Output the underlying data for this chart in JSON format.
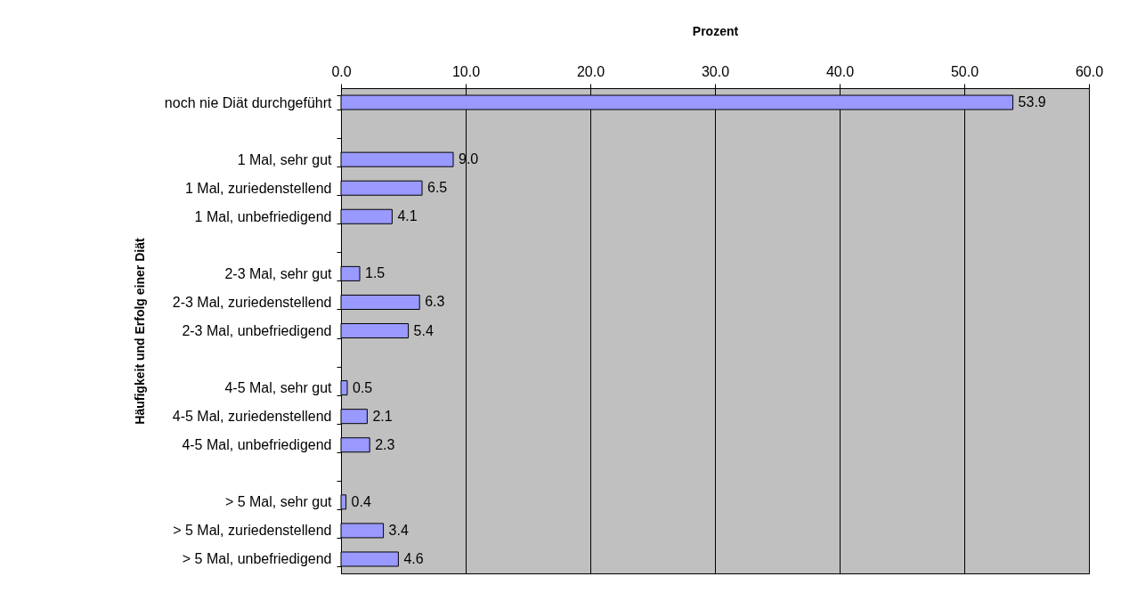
{
  "chart_data": {
    "type": "bar",
    "orientation": "horizontal",
    "xlabel": "Prozent",
    "ylabel": "Häufigkeit und Erfolg einer Diät",
    "categories": [
      "noch nie Diät durchgeführt",
      null,
      "1 Mal, sehr gut",
      "1 Mal, zuriedenstellend",
      "1 Mal, unbefriedigend",
      null,
      "2-3 Mal, sehr gut",
      "2-3 Mal, zuriedenstellend",
      "2-3 Mal, unbefriedigend",
      null,
      "4-5 Mal, sehr gut",
      "4-5 Mal, zuriedenstellend",
      "4-5 Mal, unbefriedigend",
      null,
      "> 5 Mal, sehr gut",
      "> 5 Mal, zuriedenstellend",
      "> 5 Mal, unbefriedigend"
    ],
    "values": [
      53.9,
      null,
      9.0,
      6.5,
      4.1,
      null,
      1.5,
      6.3,
      5.4,
      null,
      0.5,
      2.1,
      2.3,
      null,
      0.4,
      3.4,
      4.6
    ],
    "value_labels": [
      "53.9",
      null,
      "9.0",
      "6.5",
      "4.1",
      null,
      "1.5",
      "6.3",
      "5.4",
      null,
      "0.5",
      "2.1",
      "2.3",
      null,
      "0.4",
      "3.4",
      "4.6"
    ],
    "color": "#9999ff",
    "xlim": [
      0,
      60
    ],
    "xticks": [
      {
        "value": 0,
        "label": "0.0"
      },
      {
        "value": 10,
        "label": "10.0"
      },
      {
        "value": 20,
        "label": "20.0"
      },
      {
        "value": 30,
        "label": "30.0"
      },
      {
        "value": 40,
        "label": "40.0"
      },
      {
        "value": 50,
        "label": "50.0"
      },
      {
        "value": 60,
        "label": "60.0"
      }
    ],
    "grid": "x"
  }
}
